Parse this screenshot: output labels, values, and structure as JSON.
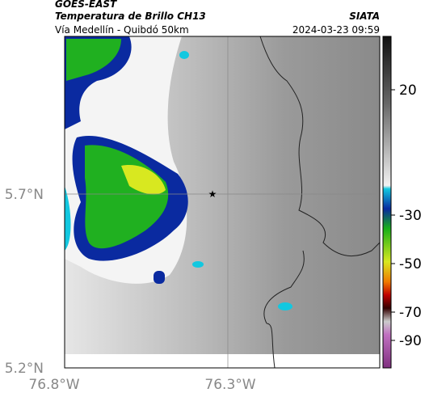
{
  "header": {
    "source": "GOES-EAST",
    "product": "Temperatura de Brillo CH13",
    "agency": "SIATA",
    "route": "Vía Medellín - Quibdó 50km",
    "timestamp": "2024-03-23 09:59"
  },
  "axes": {
    "lat_labels": [
      "5.7°N",
      "5.2°N"
    ],
    "lon_labels": [
      "76.8°W",
      "76.3°W"
    ]
  },
  "colorbar": {
    "ticks": [
      20,
      -30,
      -50,
      -70,
      -90
    ]
  }
}
